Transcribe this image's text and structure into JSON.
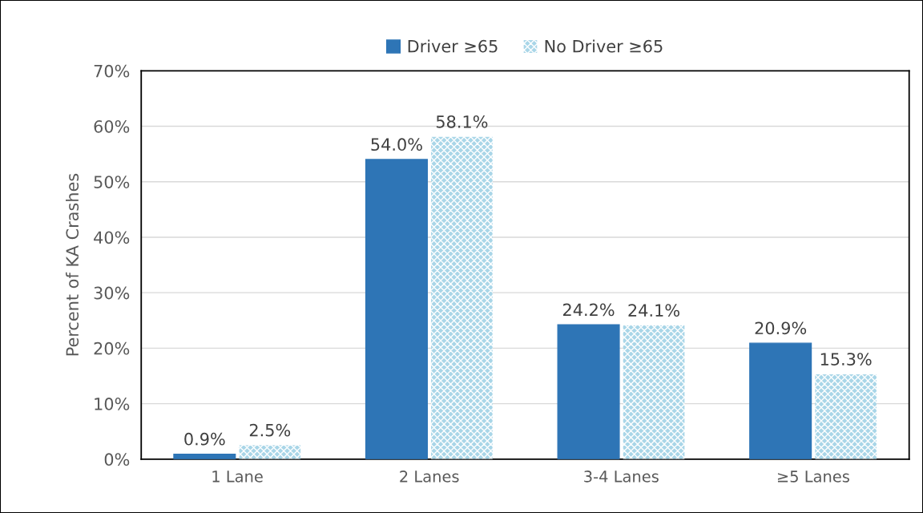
{
  "chart_data": {
    "type": "bar",
    "ylabel": "Percent of KA Crashes",
    "categories": [
      "1 Lane",
      "2 Lanes",
      "3-4 Lanes",
      "≥5 Lanes"
    ],
    "series": [
      {
        "name": "Driver ≥65",
        "color": "#2e75b6",
        "values": [
          0.9,
          54.0,
          24.2,
          20.9
        ]
      },
      {
        "name": "No Driver ≥65",
        "color": "#a9d6e8",
        "values": [
          2.5,
          58.1,
          24.1,
          15.3
        ]
      }
    ],
    "value_labels": [
      [
        "0.9%",
        "54.0%",
        "24.2%",
        "20.9%"
      ],
      [
        "2.5%",
        "58.1%",
        "24.1%",
        "15.3%"
      ]
    ],
    "ylim": [
      0,
      70
    ],
    "yticks": [
      {
        "value": 0,
        "label": "0%"
      },
      {
        "value": 10,
        "label": "10%"
      },
      {
        "value": 20,
        "label": "20%"
      },
      {
        "value": 30,
        "label": "30%"
      },
      {
        "value": 40,
        "label": "40%"
      },
      {
        "value": 50,
        "label": "50%"
      },
      {
        "value": 60,
        "label": "60%"
      },
      {
        "value": 70,
        "label": "70%"
      }
    ],
    "grid": "y",
    "legend": "top"
  }
}
